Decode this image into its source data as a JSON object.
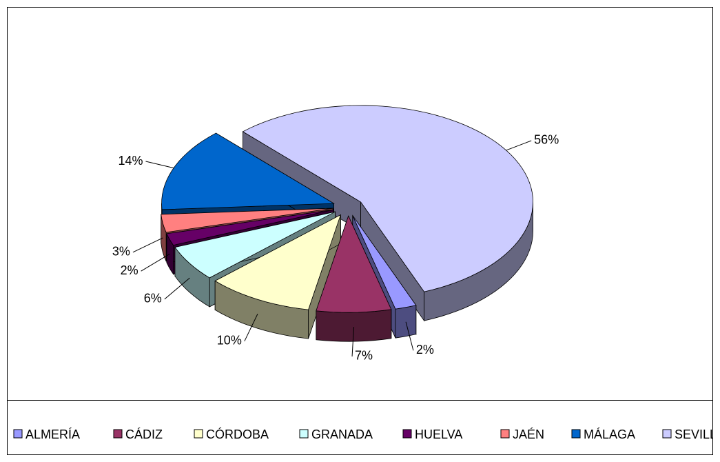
{
  "chart_data": {
    "type": "pie3d",
    "categories": [
      "ALMERÍA",
      "CÁDIZ",
      "CÓRDOBA",
      "GRANADA",
      "HUELVA",
      "JAÉN",
      "MÁLAGA",
      "SEVILLA"
    ],
    "values": [
      2,
      7,
      10,
      6,
      2,
      3,
      14,
      56
    ],
    "value_labels": [
      "2%",
      "7%",
      "10%",
      "6%",
      "2%",
      "3%",
      "14%",
      "56%"
    ],
    "colors": [
      "#9999ff",
      "#993366",
      "#ffffcc",
      "#ccffff",
      "#660066",
      "#ff8080",
      "#0066cc",
      "#ccccff"
    ],
    "legend": "bottom"
  }
}
